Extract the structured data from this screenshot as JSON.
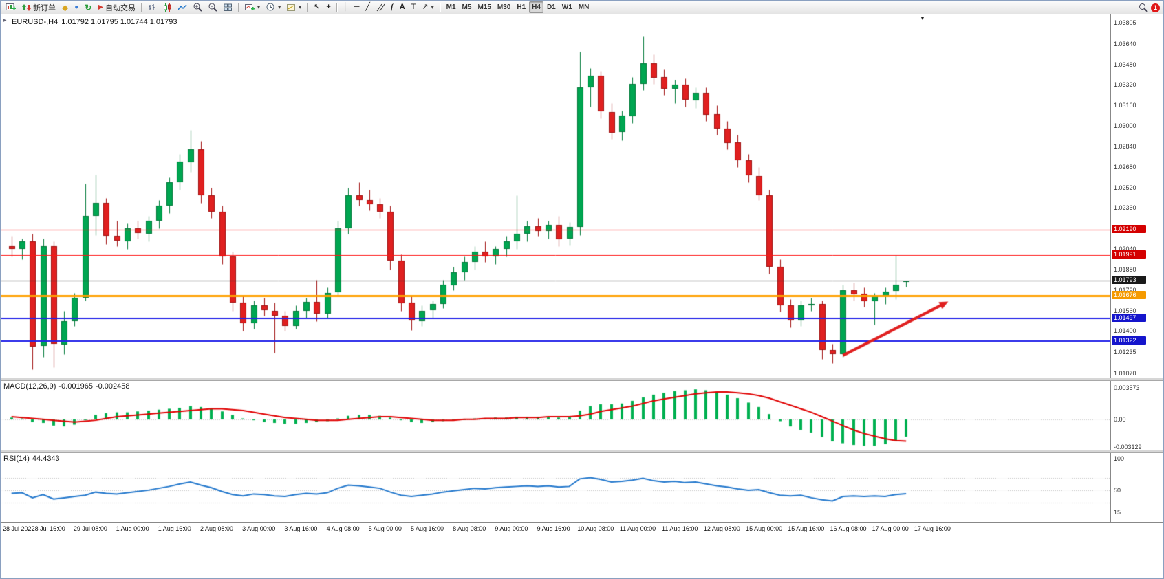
{
  "toolbar": {
    "new_order": "新订单",
    "autotrade": "自动交易",
    "timeframes": [
      "M1",
      "M5",
      "M15",
      "M30",
      "H1",
      "H4",
      "D1",
      "W1",
      "MN"
    ],
    "active_timeframe": "H4",
    "notification_count": "1",
    "glyphs": {
      "metaeditor": "◆",
      "market": "●",
      "refresh": "↻",
      "autotrade_play": "▶",
      "cursor": "↖",
      "crosshair": "+",
      "vline": "│",
      "hline": "─",
      "trendline": "╱",
      "fibo": "f",
      "text": "A",
      "label": "T",
      "arrow": "↗",
      "caret": "▾",
      "one_click": "▸",
      "shift_marker": "▼"
    }
  },
  "chart_data": {
    "type": "candlestick",
    "symbol": "EURUSD-",
    "period": "H4",
    "title": "EURUSD-,H4",
    "ohlc_text": "1.01792 1.01795 1.01744 1.01793",
    "price_axis": {
      "min": 1.0107,
      "max": 1.03805,
      "ticks": [
        {
          "t": "1.03805",
          "v": 1.03805
        },
        {
          "t": "1.03640",
          "v": 1.0364
        },
        {
          "t": "1.03480",
          "v": 1.0348
        },
        {
          "t": "1.03320",
          "v": 1.0332
        },
        {
          "t": "1.03160",
          "v": 1.0316
        },
        {
          "t": "1.03000",
          "v": 1.03
        },
        {
          "t": "1.02840",
          "v": 1.0284
        },
        {
          "t": "1.02680",
          "v": 1.0268
        },
        {
          "t": "1.02520",
          "v": 1.0252
        },
        {
          "t": "1.02360",
          "v": 1.0236
        },
        {
          "t": "1.02040",
          "v": 1.0204
        },
        {
          "t": "1.01880",
          "v": 1.0188
        },
        {
          "t": "1.01720",
          "v": 1.0172
        },
        {
          "t": "1.01560",
          "v": 1.0156
        },
        {
          "t": "1.01400",
          "v": 1.014
        },
        {
          "t": "1.01235",
          "v": 1.01235
        },
        {
          "t": "1.01070",
          "v": 1.0107
        }
      ]
    },
    "time_labels": [
      "28 Jul 2022",
      "28 Jul 16:00",
      "29 Jul 08:00",
      "1 Aug 00:00",
      "1 Aug 16:00",
      "2 Aug 08:00",
      "3 Aug 00:00",
      "3 Aug 16:00",
      "4 Aug 08:00",
      "5 Aug 00:00",
      "5 Aug 16:00",
      "8 Aug 08:00",
      "9 Aug 00:00",
      "9 Aug 16:00",
      "10 Aug 08:00",
      "11 Aug 00:00",
      "11 Aug 16:00",
      "12 Aug 08:00",
      "15 Aug 00:00",
      "15 Aug 16:00",
      "16 Aug 08:00",
      "17 Aug 00:00",
      "17 Aug 16:00"
    ],
    "label_every": 4,
    "colors": {
      "bull": "#00a651",
      "bull_wick": "#007a3a",
      "bear": "#e02020",
      "bear_wick": "#a01010"
    },
    "candles": [
      [
        1.0206,
        1.0214,
        1.0198,
        1.0204
      ],
      [
        1.0204,
        1.0212,
        1.0196,
        1.021
      ],
      [
        1.021,
        1.0216,
        1.011,
        1.0128
      ],
      [
        1.0128,
        1.0212,
        1.012,
        1.0206
      ],
      [
        1.0206,
        1.021,
        1.0112,
        1.013
      ],
      [
        1.013,
        1.0156,
        1.0122,
        1.0148
      ],
      [
        1.0148,
        1.017,
        1.0144,
        1.0166
      ],
      [
        1.0166,
        1.0255,
        1.0164,
        1.023
      ],
      [
        1.023,
        1.0262,
        1.0215,
        1.024
      ],
      [
        1.024,
        1.0244,
        1.0208,
        1.0214
      ],
      [
        1.0214,
        1.0226,
        1.0206,
        1.021
      ],
      [
        1.021,
        1.0224,
        1.0204,
        1.022
      ],
      [
        1.022,
        1.0226,
        1.0212,
        1.0216
      ],
      [
        1.0216,
        1.023,
        1.021,
        1.0226
      ],
      [
        1.0226,
        1.0242,
        1.022,
        1.0238
      ],
      [
        1.0238,
        1.026,
        1.0232,
        1.0256
      ],
      [
        1.0256,
        1.0278,
        1.025,
        1.0272
      ],
      [
        1.0272,
        1.0297,
        1.0264,
        1.0282
      ],
      [
        1.0282,
        1.0288,
        1.024,
        1.0246
      ],
      [
        1.0246,
        1.0252,
        1.0228,
        1.0233
      ],
      [
        1.0233,
        1.0238,
        1.0192,
        1.0198
      ],
      [
        1.0198,
        1.0202,
        1.0156,
        1.0162
      ],
      [
        1.0162,
        1.0168,
        1.014,
        1.0146
      ],
      [
        1.0146,
        1.0164,
        1.0142,
        1.016
      ],
      [
        1.016,
        1.0166,
        1.0152,
        1.0156
      ],
      [
        1.0156,
        1.0162,
        1.0123,
        1.0152
      ],
      [
        1.0152,
        1.0156,
        1.014,
        1.0144
      ],
      [
        1.0144,
        1.016,
        1.0142,
        1.0156
      ],
      [
        1.0156,
        1.0166,
        1.015,
        1.0163
      ],
      [
        1.0163,
        1.018,
        1.0148,
        1.0154
      ],
      [
        1.0154,
        1.0174,
        1.015,
        1.017
      ],
      [
        1.017,
        1.0226,
        1.0168,
        1.022
      ],
      [
        1.022,
        1.0252,
        1.0216,
        1.0246
      ],
      [
        1.0246,
        1.0256,
        1.0238,
        1.0242
      ],
      [
        1.0242,
        1.025,
        1.0234,
        1.0239
      ],
      [
        1.0239,
        1.0244,
        1.0228,
        1.0233
      ],
      [
        1.0233,
        1.0238,
        1.0188,
        1.0195
      ],
      [
        1.0195,
        1.02,
        1.0156,
        1.0162
      ],
      [
        1.0162,
        1.0168,
        1.0141,
        1.0148
      ],
      [
        1.0148,
        1.016,
        1.0144,
        1.0156
      ],
      [
        1.0156,
        1.0164,
        1.015,
        1.0161
      ],
      [
        1.0161,
        1.018,
        1.0158,
        1.0176
      ],
      [
        1.0176,
        1.019,
        1.0172,
        1.0186
      ],
      [
        1.0186,
        1.0198,
        1.018,
        1.0194
      ],
      [
        1.0194,
        1.0206,
        1.0188,
        1.0202
      ],
      [
        1.0202,
        1.021,
        1.0194,
        1.0198
      ],
      [
        1.0198,
        1.0206,
        1.0192,
        1.0204
      ],
      [
        1.0204,
        1.0214,
        1.0198,
        1.021
      ],
      [
        1.021,
        1.0246,
        1.0204,
        1.0216
      ],
      [
        1.0216,
        1.0226,
        1.021,
        1.0222
      ],
      [
        1.0222,
        1.0228,
        1.0214,
        1.0218
      ],
      [
        1.0218,
        1.0226,
        1.0212,
        1.0223
      ],
      [
        1.0223,
        1.023,
        1.0206,
        1.0212
      ],
      [
        1.0212,
        1.0225,
        1.0207,
        1.0221
      ],
      [
        1.0221,
        1.0358,
        1.0215,
        1.033
      ],
      [
        1.033,
        1.0345,
        1.0315,
        1.0339
      ],
      [
        1.0339,
        1.0343,
        1.0306,
        1.0311
      ],
      [
        1.0311,
        1.0318,
        1.029,
        1.0295
      ],
      [
        1.0295,
        1.0312,
        1.0289,
        1.0308
      ],
      [
        1.0308,
        1.0338,
        1.0302,
        1.0333
      ],
      [
        1.0333,
        1.037,
        1.0328,
        1.0349
      ],
      [
        1.0349,
        1.0356,
        1.0333,
        1.0338
      ],
      [
        1.0338,
        1.0344,
        1.0324,
        1.0329
      ],
      [
        1.0329,
        1.0336,
        1.0318,
        1.0332
      ],
      [
        1.0332,
        1.0337,
        1.0315,
        1.032
      ],
      [
        1.032,
        1.033,
        1.0314,
        1.0326
      ],
      [
        1.0326,
        1.033,
        1.0304,
        1.0309
      ],
      [
        1.0309,
        1.0316,
        1.0293,
        1.0298
      ],
      [
        1.0298,
        1.0304,
        1.0282,
        1.0287
      ],
      [
        1.0287,
        1.0293,
        1.0268,
        1.0273
      ],
      [
        1.0273,
        1.0278,
        1.0256,
        1.0261
      ],
      [
        1.0261,
        1.0268,
        1.0242,
        1.0246
      ],
      [
        1.0246,
        1.025,
        1.0185,
        1.019
      ],
      [
        1.019,
        1.0196,
        1.0155,
        1.016
      ],
      [
        1.016,
        1.0165,
        1.0143,
        1.0148
      ],
      [
        1.0148,
        1.0164,
        1.0144,
        1.016
      ],
      [
        1.016,
        1.0166,
        1.0156,
        1.0161
      ],
      [
        1.0161,
        1.0164,
        1.0118,
        1.0125
      ],
      [
        1.0125,
        1.013,
        1.0115,
        1.0122
      ],
      [
        1.0122,
        1.0176,
        1.012,
        1.0172
      ],
      [
        1.0172,
        1.0178,
        1.0164,
        1.0169
      ],
      [
        1.0169,
        1.0174,
        1.0159,
        1.0163
      ],
      [
        1.0163,
        1.017,
        1.0145,
        1.0167
      ],
      [
        1.0167,
        1.0174,
        1.0161,
        1.0171
      ],
      [
        1.0171,
        1.0199,
        1.0165,
        1.0176
      ],
      [
        1.01792,
        1.01795,
        1.01744,
        1.01793
      ]
    ],
    "hlines": [
      {
        "price": 1.0219,
        "color": "#ff1414",
        "width": 1,
        "badge": "1.02190",
        "badge_bg": "#d40000"
      },
      {
        "price": 1.01991,
        "color": "#ff1414",
        "width": 1,
        "badge": "1.01991",
        "badge_bg": "#d40000"
      },
      {
        "price": 1.01793,
        "color": "#3a3a3a",
        "width": 1,
        "badge": "1.01793",
        "badge_bg": "#1a1a1a"
      },
      {
        "price": 1.01676,
        "color": "#ffa000",
        "width": 3,
        "badge": "1.01676",
        "badge_bg": "#f59a00"
      },
      {
        "price": 1.01497,
        "color": "#2121e8",
        "width": 2,
        "badge": "1.01497",
        "badge_bg": "#1515cc"
      },
      {
        "price": 1.01322,
        "color": "#2121e8",
        "width": 2,
        "badge": "1.01322",
        "badge_bg": "#1515cc"
      }
    ],
    "current_price": 1.01793,
    "annotation_arrow": {
      "from_slot": 79,
      "from_price": 1.0121,
      "to_slot": 89,
      "to_price": 1.0163,
      "color": "#e02020"
    },
    "macd": {
      "label": "MACD(12,26,9)",
      "value_text": "-0.001965",
      "signal_text": "-0.002458",
      "hist_color": "#00b050",
      "signal_color": "#e00000",
      "axis_ticks": [
        {
          "t": "0.003573",
          "v": 0.003573
        },
        {
          "t": "0.00",
          "v": 0
        },
        {
          "t": "-0.003129",
          "v": -0.003129
        }
      ],
      "hist": [
        0.0002,
        0.0001,
        -0.0003,
        -0.0004,
        -0.0007,
        -0.0008,
        -0.0006,
        0,
        0.0005,
        0.0007,
        0.0008,
        0.0008,
        0.0009,
        0.001,
        0.0011,
        0.0012,
        0.0013,
        0.0015,
        0.0014,
        0.0012,
        0.0009,
        0.0005,
        0.0001,
        -0.0001,
        -0.0003,
        -0.0004,
        -0.0005,
        -0.0005,
        -0.0004,
        -0.0003,
        -0.0002,
        0.0001,
        0.0004,
        0.0005,
        0.0005,
        0.0004,
        0.0002,
        -0.0001,
        -0.0003,
        -0.0004,
        -0.0003,
        -0.0002,
        -0.0001,
        0,
        0.0001,
        0.0001,
        0.0002,
        0.0002,
        0.0003,
        0.0003,
        0.0003,
        0.0003,
        0.0002,
        0.0003,
        0.001,
        0.0015,
        0.0017,
        0.0017,
        0.0018,
        0.0021,
        0.0025,
        0.0028,
        0.003,
        0.0032,
        0.0033,
        0.0034,
        0.0033,
        0.0031,
        0.0028,
        0.0024,
        0.0019,
        0.0014,
        0.0006,
        -0.0002,
        -0.0008,
        -0.0012,
        -0.0015,
        -0.002,
        -0.0025,
        -0.0027,
        -0.0029,
        -0.003,
        -0.003,
        -0.0028,
        -0.0024,
        -0.001965
      ],
      "signal": [
        0.0003,
        0.0002,
        0.0001,
        0,
        -0.0001,
        -0.0002,
        -0.0003,
        -0.0002,
        -0.0001,
        0.0001,
        0.0003,
        0.0004,
        0.0005,
        0.0006,
        0.0007,
        0.0008,
        0.0009,
        0.001,
        0.0011,
        0.0012,
        0.0012,
        0.0011,
        0.001,
        0.0008,
        0.0006,
        0.0004,
        0.0002,
        0.0001,
        0,
        -0.0001,
        -0.0001,
        -0.0001,
        0,
        0.0001,
        0.0002,
        0.0003,
        0.0003,
        0.0002,
        0.0001,
        0,
        -0.0001,
        -0.0001,
        -0.0001,
        0,
        0,
        0.0001,
        0.0001,
        0.0001,
        0.0002,
        0.0002,
        0.0002,
        0.0003,
        0.0003,
        0.0003,
        0.0004,
        0.0006,
        0.0009,
        0.0011,
        0.0013,
        0.0015,
        0.0018,
        0.0021,
        0.0023,
        0.0025,
        0.0027,
        0.0029,
        0.003,
        0.0031,
        0.0031,
        0.003,
        0.0029,
        0.0027,
        0.0024,
        0.002,
        0.0016,
        0.0012,
        0.0008,
        0.0003,
        -0.0002,
        -0.0007,
        -0.0012,
        -0.0016,
        -0.0019,
        -0.0022,
        -0.0024,
        -0.002458
      ]
    },
    "rsi": {
      "label": "RSI(14)",
      "value_text": "44.4343",
      "line_color": "#2277cc",
      "axis_ticks": [
        {
          "t": "100",
          "v": 100
        },
        {
          "t": "50",
          "v": 50
        },
        {
          "t": "15",
          "v": 15
        }
      ],
      "levels": [
        70,
        50,
        30
      ],
      "values": [
        45,
        46,
        38,
        43,
        36,
        38,
        40,
        42,
        47,
        45,
        44,
        46,
        48,
        50,
        53,
        56,
        60,
        63,
        58,
        54,
        48,
        43,
        41,
        44,
        43,
        41,
        40,
        43,
        45,
        44,
        46,
        53,
        58,
        57,
        55,
        53,
        47,
        42,
        40,
        42,
        44,
        47,
        49,
        51,
        53,
        52,
        54,
        55,
        56,
        57,
        56,
        57,
        55,
        56,
        68,
        70,
        67,
        63,
        64,
        66,
        69,
        65,
        63,
        64,
        62,
        63,
        60,
        57,
        55,
        52,
        50,
        51,
        46,
        42,
        41,
        42,
        38,
        35,
        33,
        40,
        41,
        40,
        41,
        40,
        43,
        44.4343
      ]
    }
  }
}
